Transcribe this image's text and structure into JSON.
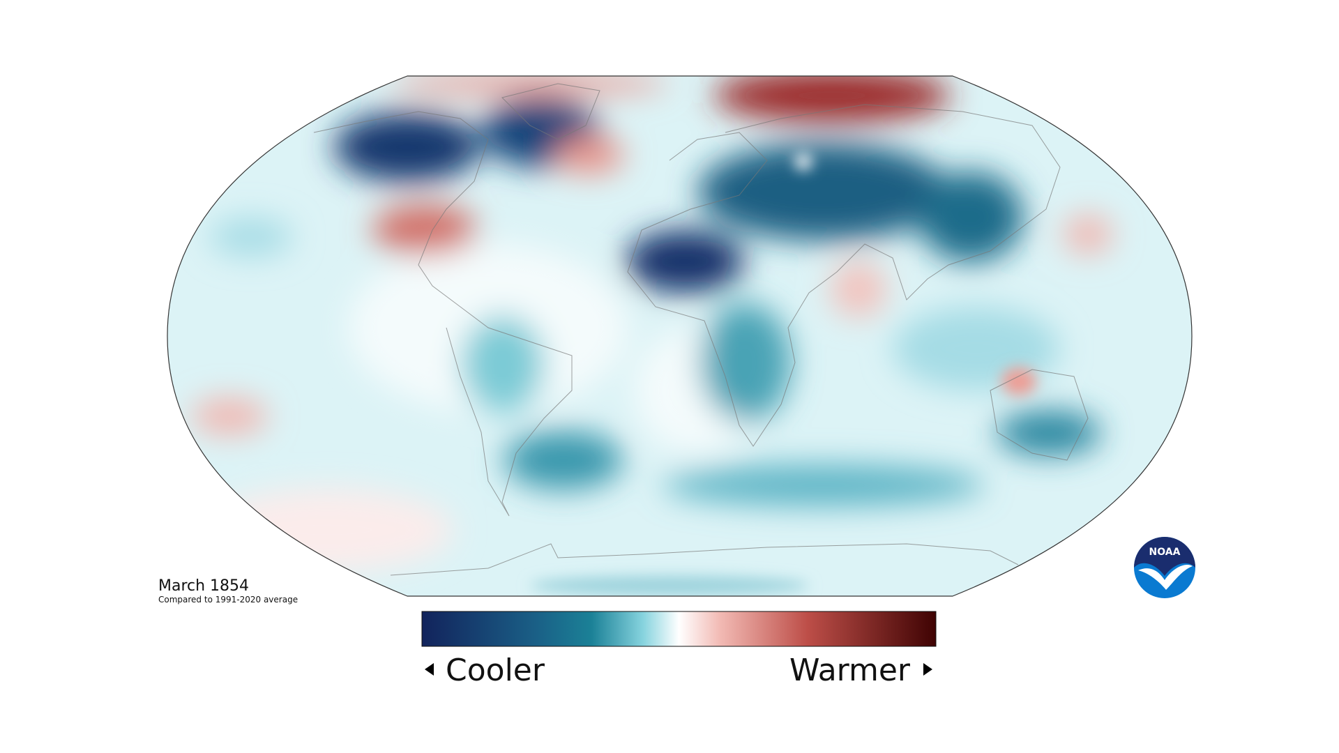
{
  "map": {
    "title": "March 1854",
    "subtitle": "Compared to 1991-2020 average",
    "legend": {
      "low": "Cooler",
      "high": "Warmer"
    }
  },
  "logo": {
    "text": "NOAA"
  }
}
